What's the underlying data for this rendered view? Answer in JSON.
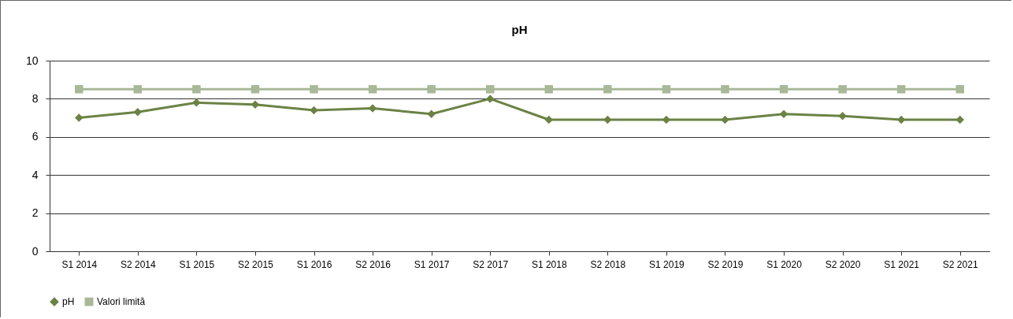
{
  "chart_data": {
    "type": "line",
    "title": "pH",
    "categories": [
      "S1 2014",
      "S2 2014",
      "S1 2015",
      "S2 2015",
      "S1 2016",
      "S2 2016",
      "S1 2017",
      "S2 2017",
      "S1 2018",
      "S2 2018",
      "S1 2019",
      "S2 2019",
      "S1 2020",
      "S2 2020",
      "S1 2021",
      "S2 2021"
    ],
    "series": [
      {
        "name": "pH",
        "color": "#6b8245",
        "marker": "diamond",
        "values": [
          7.0,
          7.3,
          7.8,
          7.7,
          7.4,
          7.5,
          7.2,
          8.0,
          6.9,
          6.9,
          6.9,
          6.9,
          7.2,
          7.1,
          6.9,
          6.9
        ]
      },
      {
        "name": "Valori limită",
        "color": "#a8b898",
        "marker": "square",
        "values": [
          8.5,
          8.5,
          8.5,
          8.5,
          8.5,
          8.5,
          8.5,
          8.5,
          8.5,
          8.5,
          8.5,
          8.5,
          8.5,
          8.5,
          8.5,
          8.5
        ]
      }
    ],
    "ylim": [
      0,
      10
    ],
    "yticks": [
      0,
      2,
      4,
      6,
      8,
      10
    ],
    "grid": "y",
    "legend": "bottom",
    "line_style": "solid"
  }
}
